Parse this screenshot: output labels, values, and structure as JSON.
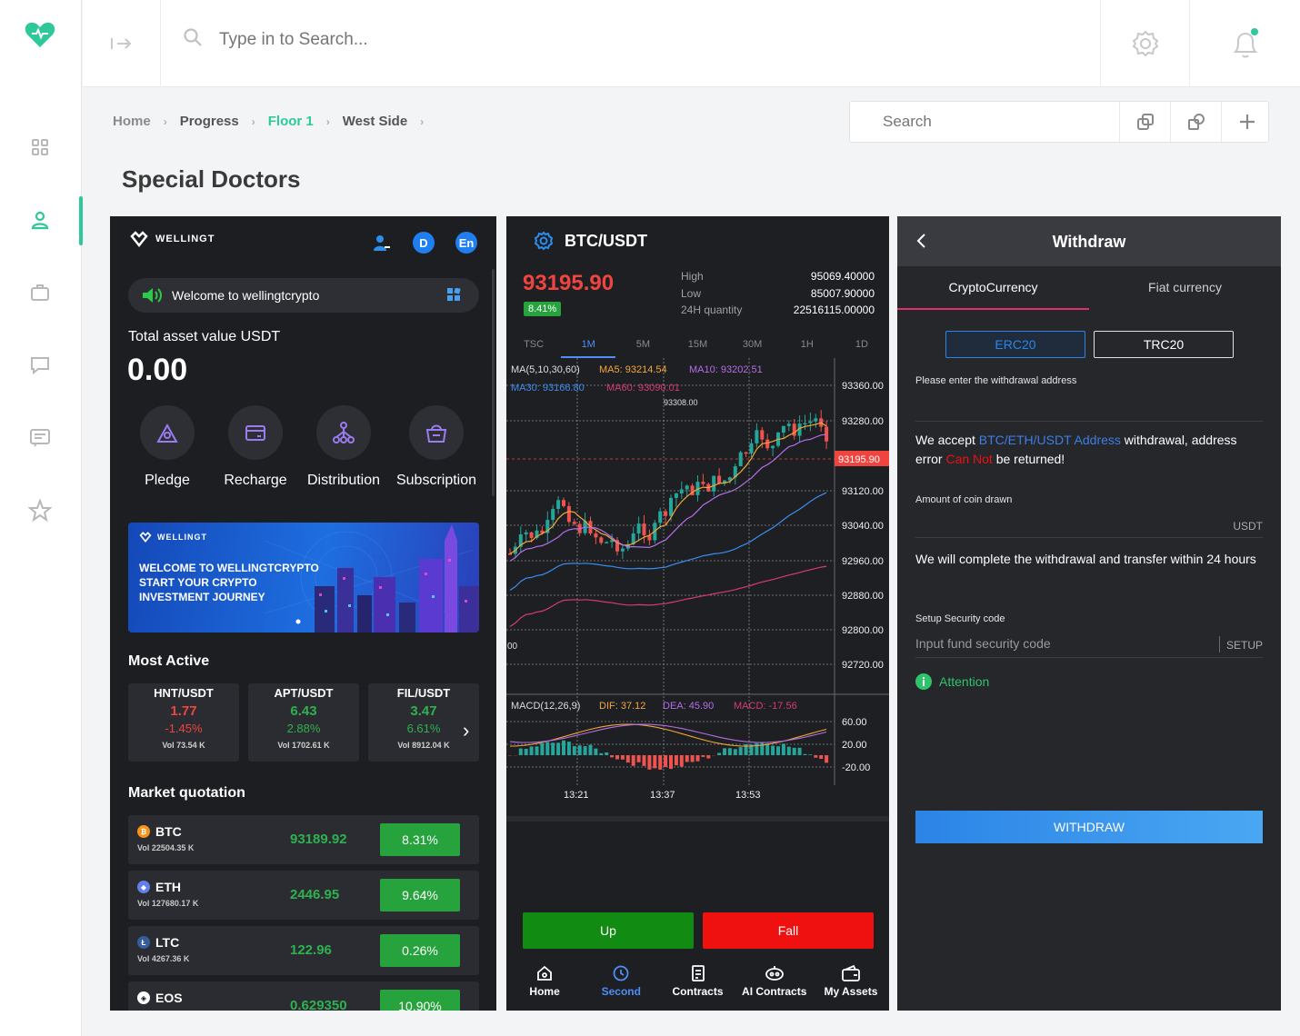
{
  "header": {
    "search_placeholder": "Type in to Search...",
    "breadcrumb": [
      "Home",
      "Progress",
      "Floor 1",
      "West Side"
    ],
    "page_title": "Special Doctors",
    "content_search_placeholder": "Search"
  },
  "sidebar": {
    "icons": [
      "heart-logo-icon",
      "grid-icon",
      "user-icon",
      "briefcase-icon",
      "chat-icon",
      "message-icon",
      "star-icon"
    ]
  },
  "app_home": {
    "brand": "WELLINGT",
    "avatar_letter": "D",
    "lang": "En",
    "welcome": "Welcome to wellingtcrypto",
    "total_label": "Total asset value USDT",
    "total_value": "0.00",
    "actions": [
      "Pledge",
      "Recharge",
      "Distribution",
      "Subscription"
    ],
    "banner": {
      "brand": "WELLINGT",
      "line1": "WELCOME TO WELLINGTCRYPTO",
      "line2": "START YOUR CRYPTO",
      "line3": "INVESTMENT JOURNEY"
    },
    "most_active_title": "Most Active",
    "most_active": [
      {
        "pair": "HNT/USDT",
        "price": "1.77",
        "change": "-1.45%",
        "vol": "Vol 73.54 K",
        "color": "#f0453e"
      },
      {
        "pair": "APT/USDT",
        "price": "6.43",
        "change": "2.88%",
        "vol": "Vol 1702.61 K",
        "color": "#2eb14f"
      },
      {
        "pair": "FIL/USDT",
        "price": "3.47",
        "change": "6.61%",
        "vol": "Vol 8912.04 K",
        "color": "#2eb14f"
      }
    ],
    "market_title": "Market quotation",
    "market": [
      {
        "coin": "BTC",
        "vol": "Vol 22504.35 K",
        "price": "93189.92",
        "change": "8.31%"
      },
      {
        "coin": "ETH",
        "vol": "Vol 127680.17 K",
        "price": "2446.95",
        "change": "9.64%"
      },
      {
        "coin": "LTC",
        "vol": "Vol 4267.36 K",
        "price": "122.96",
        "change": "0.26%"
      },
      {
        "coin": "EOS",
        "vol": "",
        "price": "0.629350",
        "change": "10.90%"
      }
    ]
  },
  "trade": {
    "pair": "BTC/USDT",
    "price": "93195.90",
    "percent": "8.41%",
    "stats": [
      {
        "label": "High",
        "value": "95069.40000"
      },
      {
        "label": "Low",
        "value": "85007.90000"
      },
      {
        "label": "24H quantity",
        "value": "22516115.00000"
      }
    ],
    "timeframes": [
      "TSC",
      "1M",
      "5M",
      "15M",
      "30M",
      "1H",
      "1D"
    ],
    "ma_line1": {
      "label": "MA(5,10,30,60)",
      "ma5": "MA5: 93214.54",
      "ma10": "MA10: 93202.51"
    },
    "ma_line2": {
      "ma30": "MA30: 93166.80",
      "ma60": "MA60: 93090.01"
    },
    "high_marker": "93308.00",
    "price_ticks": [
      "93360.00",
      "93280.00",
      "93120.00",
      "93040.00",
      "92960.00",
      "92880.00",
      "92800.00",
      "92720.00"
    ],
    "current_tag": "93195.90",
    "left_clip": "00",
    "macd": {
      "label": "MACD(12,26,9)",
      "dif": "DIF: 37.12",
      "dea": "DEA: 45.90",
      "macd": "MACD: -17.56"
    },
    "macd_ticks": [
      "60.00",
      "20.00",
      "-20.00"
    ],
    "time_ticks": [
      "13:21",
      "13:37",
      "13:53"
    ],
    "up_label": "Up",
    "fall_label": "Fall",
    "nav": [
      "Home",
      "Second",
      "Contracts",
      "AI Contracts",
      "My Assets"
    ]
  },
  "withdraw": {
    "title": "Withdraw",
    "tabs": [
      "CryptoCurrency",
      "Fiat currency"
    ],
    "chains": [
      "ERC20",
      "TRC20"
    ],
    "address_label": "Please enter the withdrawal address",
    "notice_a": "We accept ",
    "notice_b": "BTC/ETH/USDT Address",
    "notice_c": " withdrawal, address error ",
    "notice_d": "Can Not",
    "notice_e": " be returned!",
    "amount_label": "Amount of coin drawn",
    "unit": "USDT",
    "complete_note": "We will complete the withdrawal and transfer within 24 hours",
    "security_label": "Setup Security code",
    "security_placeholder": "Input fund security code",
    "setup": "SETUP",
    "attention": "Attention",
    "withdraw_button": "WITHDRAW"
  }
}
